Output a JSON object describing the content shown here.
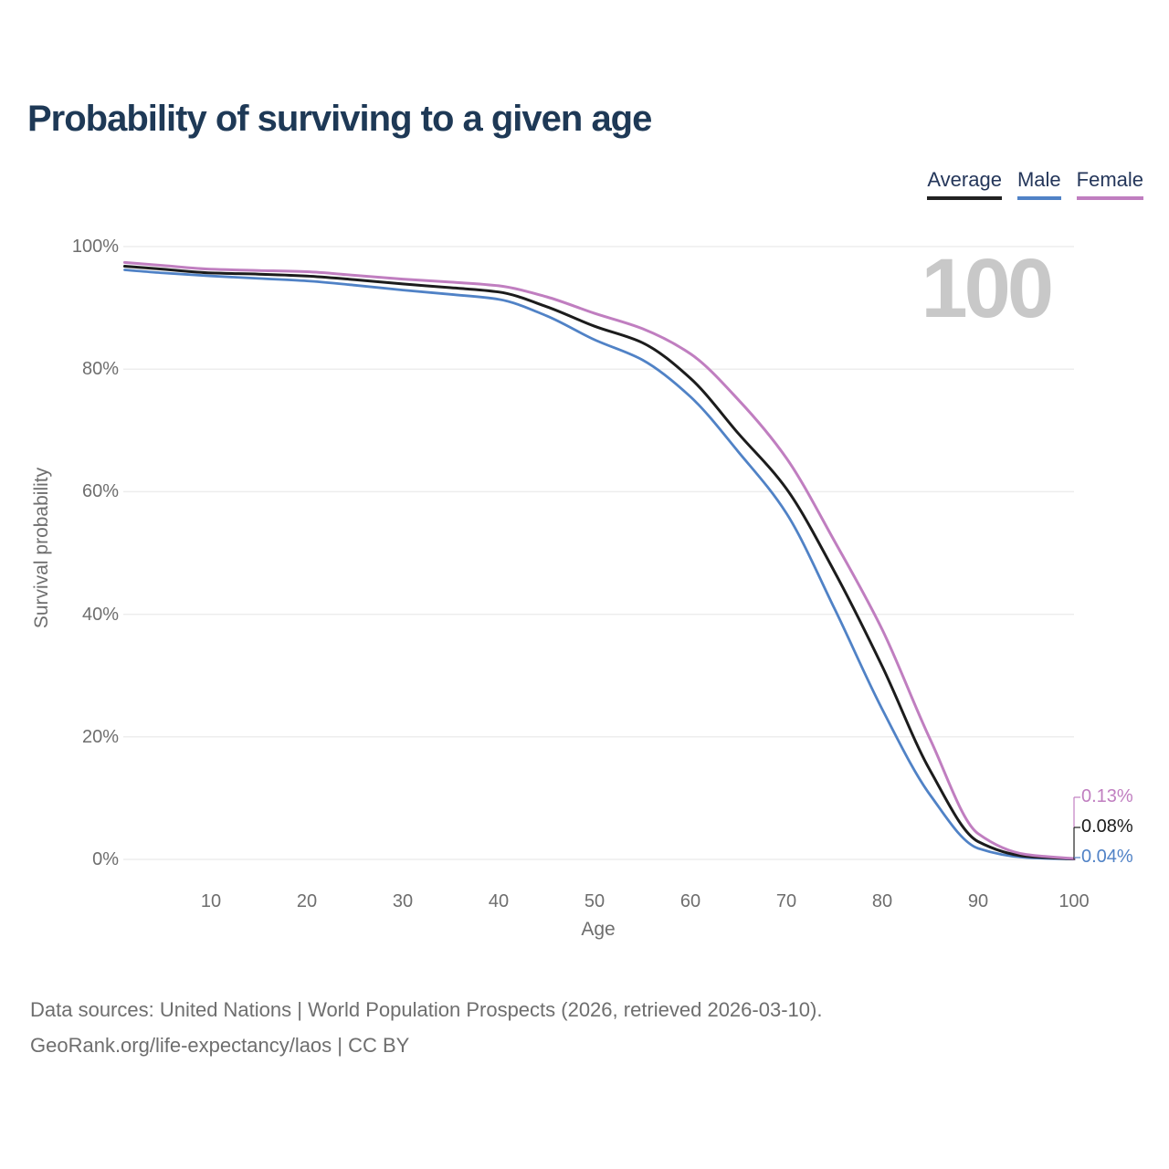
{
  "header": {
    "title": "Probability of surviving to a given age"
  },
  "legend": {
    "items": [
      {
        "label": "Average",
        "color": "#222222"
      },
      {
        "label": "Male",
        "color": "#5082c6"
      },
      {
        "label": "Female",
        "color": "#c07ec0"
      }
    ]
  },
  "hover_readout": {
    "age": "100"
  },
  "chart_data": {
    "type": "line",
    "title": "Probability of surviving to a given age",
    "xlabel": "Age",
    "ylabel": "Survival probability",
    "xlim": [
      1,
      100
    ],
    "ylim": [
      0,
      100
    ],
    "grid": "horizontal",
    "legend_position": "top-right",
    "x_ticks": [
      10,
      20,
      30,
      40,
      50,
      60,
      70,
      80,
      90,
      100
    ],
    "y_ticks": [
      {
        "value": 0,
        "label": "0%"
      },
      {
        "value": 20,
        "label": "20%"
      },
      {
        "value": 40,
        "label": "40%"
      },
      {
        "value": 60,
        "label": "60%"
      },
      {
        "value": 80,
        "label": "80%"
      },
      {
        "value": 100,
        "label": "100%"
      }
    ],
    "x": [
      1,
      5,
      10,
      15,
      20,
      25,
      30,
      35,
      40,
      45,
      50,
      55,
      60,
      65,
      70,
      75,
      80,
      85,
      90,
      95,
      100
    ],
    "series": [
      {
        "name": "Male",
        "color": "#5082c6",
        "width": 2.8,
        "end_label": "0.04%",
        "values": [
          96.2,
          95.7,
          95.2,
          94.8,
          94.4,
          93.7,
          92.9,
          92.2,
          91.4,
          88.7,
          84.8,
          81.5,
          75.5,
          66.5,
          56.5,
          41.0,
          24.5,
          10.5,
          1.8,
          0.3,
          0.04
        ]
      },
      {
        "name": "Average",
        "color": "#1c1c1c",
        "width": 3,
        "end_label": "0.08%",
        "values": [
          96.8,
          96.3,
          95.7,
          95.5,
          95.2,
          94.6,
          93.9,
          93.3,
          92.6,
          90.2,
          87.0,
          84.3,
          78.5,
          69.5,
          60.5,
          47.0,
          31.5,
          14.5,
          2.9,
          0.5,
          0.08
        ]
      },
      {
        "name": "Female",
        "color": "#c07ec0",
        "width": 3,
        "end_label": "0.13%",
        "values": [
          97.4,
          96.9,
          96.3,
          96.1,
          95.9,
          95.3,
          94.7,
          94.2,
          93.6,
          91.8,
          89.1,
          86.6,
          82.5,
          75.0,
          65.5,
          52.0,
          37.5,
          19.6,
          4.2,
          0.8,
          0.13
        ]
      }
    ]
  },
  "end_labels": [
    {
      "text": "0.13%",
      "color": "#c07ec0"
    },
    {
      "text": "0.08%",
      "color": "#1c1c1c"
    },
    {
      "text": "0.04%",
      "color": "#5082c6"
    }
  ],
  "footer": {
    "line1": "Data sources: United Nations | World Population Prospects (2026, retrieved 2026-03-10).",
    "line2": "GeoRank.org/life-expectancy/laos | CC BY"
  }
}
